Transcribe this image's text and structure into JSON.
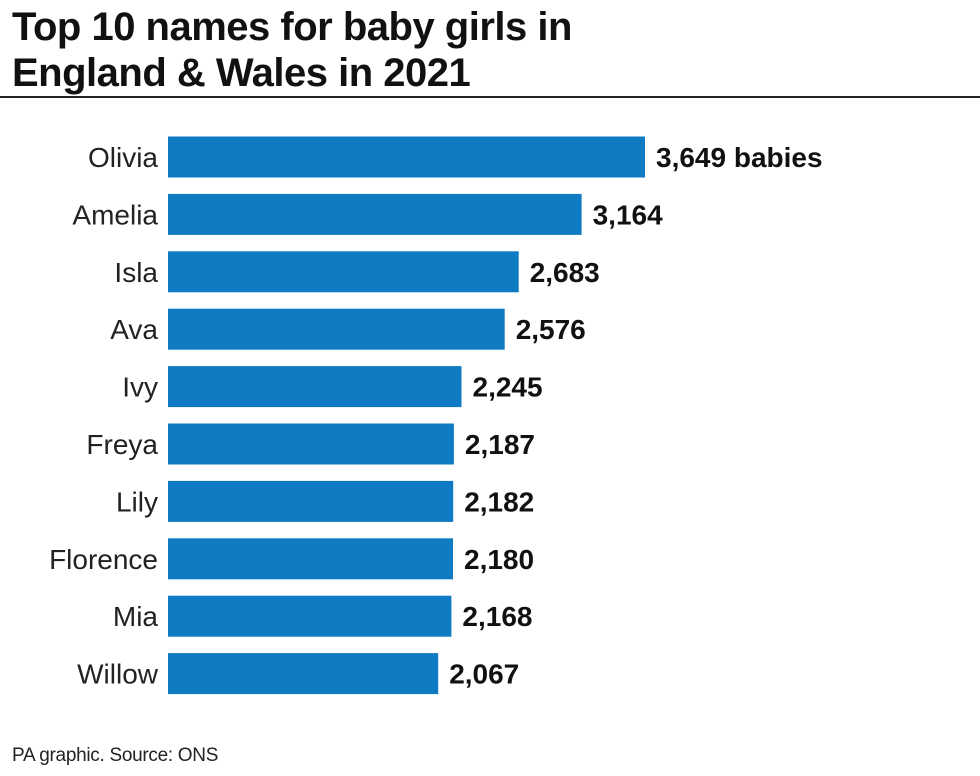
{
  "title_lines": [
    "Top 10 names for baby girls in",
    "England & Wales in 2021"
  ],
  "source": "PA graphic. Source: ONS",
  "colors": {
    "bar": "#0e7bc3",
    "text": "#111111"
  },
  "chart_data": {
    "type": "bar",
    "orientation": "horizontal",
    "title": "Top 10 names for baby girls in England & Wales in 2021",
    "categories": [
      "Olivia",
      "Amelia",
      "Isla",
      "Ava",
      "Ivy",
      "Freya",
      "Lily",
      "Florence",
      "Mia",
      "Willow"
    ],
    "values": [
      3649,
      3164,
      2683,
      2576,
      2245,
      2187,
      2182,
      2180,
      2168,
      2067
    ],
    "value_labels": [
      "3,649 babies",
      "3,164",
      "2,683",
      "2,576",
      "2,245",
      "2,187",
      "2,182",
      "2,180",
      "2,168",
      "2,067"
    ],
    "xlabel": "",
    "ylabel": "",
    "grid": false,
    "legend": "none"
  }
}
